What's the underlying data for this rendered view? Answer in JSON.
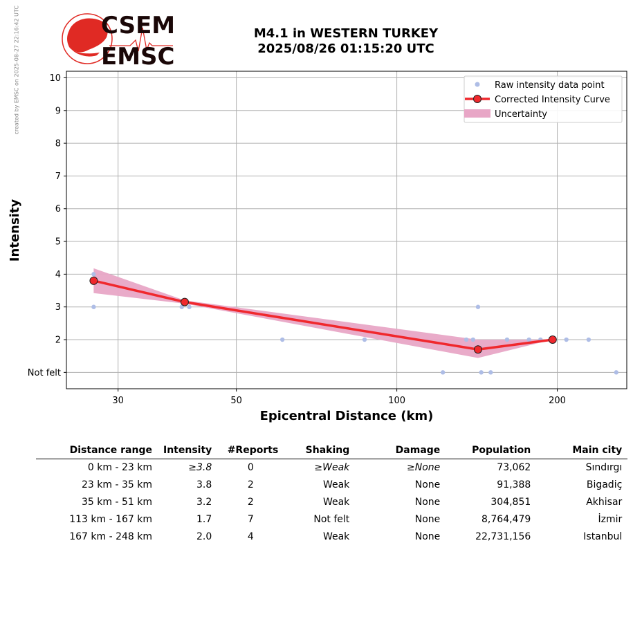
{
  "credit": "created by EMSC on 2025-08-27 22:16:42 UTC",
  "logo": {
    "line1": "CSEM",
    "line2": "EMSC",
    "color": "#e02a24"
  },
  "title": {
    "line1": "M4.1 in WESTERN TURKEY",
    "line2": "2025/08/26 01:15:20 UTC"
  },
  "chart_data": {
    "type": "scatter",
    "xlabel": "Epicentral Distance (km)",
    "ylabel": "Intensity",
    "x_scale": "log",
    "xlim": [
      24,
      270
    ],
    "ylim": [
      0.5,
      10.2
    ],
    "xticks": [
      30,
      50,
      100,
      200
    ],
    "yticks": [
      1,
      2,
      3,
      4,
      5,
      6,
      7,
      8,
      9,
      10
    ],
    "ytick_labels": [
      "Not felt",
      "2",
      "3",
      "4",
      "5",
      "6",
      "7",
      "8",
      "9",
      "10"
    ],
    "grid": true,
    "legend_position": "top-right",
    "legend": [
      "Raw intensity data point",
      "Corrected Intensity Curve",
      "Uncertainty"
    ],
    "colors": {
      "raw": "#aebde6",
      "curve": "#f0282d",
      "uncertainty": "#e8a6c6",
      "grid": "#b0b0b0"
    },
    "raw_points": [
      {
        "x": 27,
        "y": 3
      },
      {
        "x": 27,
        "y": 4
      },
      {
        "x": 39.5,
        "y": 3
      },
      {
        "x": 40.8,
        "y": 3
      },
      {
        "x": 61,
        "y": 2
      },
      {
        "x": 87,
        "y": 2
      },
      {
        "x": 122,
        "y": 1
      },
      {
        "x": 135,
        "y": 2
      },
      {
        "x": 139,
        "y": 2
      },
      {
        "x": 142,
        "y": 3
      },
      {
        "x": 144,
        "y": 1
      },
      {
        "x": 150,
        "y": 1
      },
      {
        "x": 161,
        "y": 2
      },
      {
        "x": 177,
        "y": 2
      },
      {
        "x": 186,
        "y": 2
      },
      {
        "x": 208,
        "y": 2
      },
      {
        "x": 229,
        "y": 2
      },
      {
        "x": 258,
        "y": 1
      }
    ],
    "curve": [
      {
        "x": 27,
        "y": 3.8
      },
      {
        "x": 40,
        "y": 3.15
      },
      {
        "x": 142,
        "y": 1.7
      },
      {
        "x": 196,
        "y": 2.0
      }
    ],
    "uncertainty_upper": [
      {
        "x": 27,
        "y": 4.18
      },
      {
        "x": 40,
        "y": 3.2
      },
      {
        "x": 142,
        "y": 2.0
      },
      {
        "x": 196,
        "y": 2.0
      }
    ],
    "uncertainty_lower": [
      {
        "x": 27,
        "y": 3.42
      },
      {
        "x": 40,
        "y": 3.1
      },
      {
        "x": 142,
        "y": 1.44
      },
      {
        "x": 196,
        "y": 2.0
      }
    ]
  },
  "table": {
    "headers": [
      "Distance range",
      "Intensity",
      "#Reports",
      "Shaking",
      "Damage",
      "Population",
      "Main city"
    ],
    "rows": [
      [
        "0 km -   23 km",
        "≥3.8",
        "0",
        "≥Weak",
        "≥None",
        "73,062",
        "Sındırgı"
      ],
      [
        "23 km -   35 km",
        "3.8",
        "2",
        "Weak",
        "None",
        "91,388",
        "Bigadiç"
      ],
      [
        "35 km -   51 km",
        "3.2",
        "2",
        "Weak",
        "None",
        "304,851",
        "Akhisar"
      ],
      [
        "113 km -  167 km",
        "1.7",
        "7",
        "Not felt",
        "None",
        "8,764,479",
        "İzmir"
      ],
      [
        "167 km -  248 km",
        "2.0",
        "4",
        "Weak",
        "None",
        "22,731,156",
        "Istanbul"
      ]
    ],
    "italic_first_row_cols": [
      1,
      3,
      4
    ]
  }
}
